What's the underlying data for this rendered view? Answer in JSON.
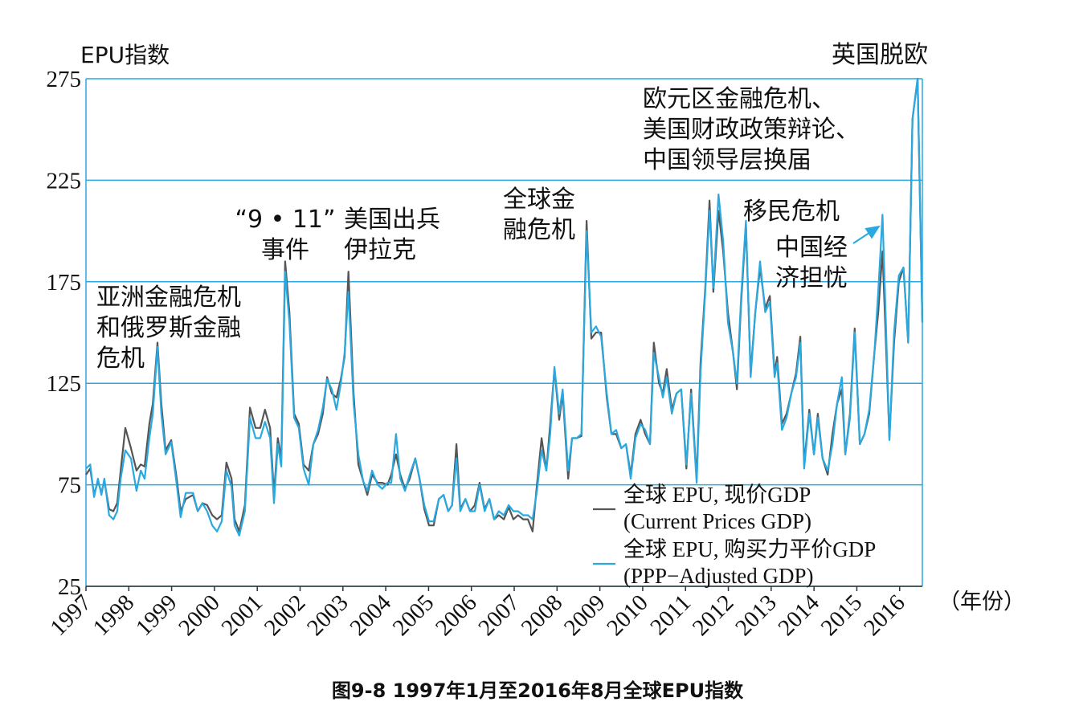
{
  "chart_data": {
    "type": "line",
    "title": "图9-8 1997年1月至2016年8月全球EPU指数",
    "y_label": "EPU指数",
    "x_label": "（年份）",
    "xlim": [
      1997,
      2016.53
    ],
    "xticks": [
      1997,
      1998,
      1999,
      2000,
      2001,
      2002,
      2003,
      2004,
      2005,
      2006,
      2007,
      2008,
      2009,
      2010,
      2011,
      2012,
      2013,
      2014,
      2015,
      2016
    ],
    "ylim": [
      25,
      275
    ],
    "yticks": [
      25,
      75,
      125,
      175,
      225,
      275
    ],
    "grid": true,
    "legend": "lower right",
    "annotations": [
      "亚洲金融危机\n和俄罗斯金融\n危机",
      "“9 • 11”\n事件",
      "美国出兵\n伊拉克",
      "全球金\n融危机",
      "欧元区金融危机、\n美国财政政策辩论、\n中国领导层换届",
      "移民危机",
      "中国经\n济担忧",
      "英国脱欧"
    ],
    "x": [
      1997.0,
      1997.1,
      1997.19,
      1997.28,
      1997.36,
      1997.43,
      1997.54,
      1997.64,
      1997.73,
      1997.81,
      1997.92,
      1998.05,
      1998.18,
      1998.28,
      1998.37,
      1998.48,
      1998.56,
      1998.67,
      1998.76,
      1998.86,
      1998.99,
      1999.12,
      1999.21,
      1999.33,
      1999.5,
      1999.61,
      1999.72,
      1999.83,
      1999.95,
      2000.06,
      2000.17,
      2000.28,
      2000.4,
      2000.47,
      2000.58,
      2000.71,
      2000.83,
      2000.96,
      2001.07,
      2001.18,
      2001.3,
      2001.39,
      2001.48,
      2001.56,
      2001.65,
      2001.75,
      2001.86,
      2001.97,
      2002.08,
      2002.2,
      2002.31,
      2002.42,
      2002.53,
      2002.63,
      2002.74,
      2002.85,
      2002.95,
      2003.04,
      2003.13,
      2003.25,
      2003.36,
      2003.47,
      2003.57,
      2003.68,
      2003.81,
      2003.92,
      2004.04,
      2004.13,
      2004.24,
      2004.34,
      2004.45,
      2004.56,
      2004.69,
      2004.79,
      2004.9,
      2005.01,
      2005.12,
      2005.24,
      2005.35,
      2005.46,
      2005.55,
      2005.65,
      2005.74,
      2005.86,
      2005.97,
      2006.08,
      2006.19,
      2006.31,
      2006.42,
      2006.53,
      2006.64,
      2006.76,
      2006.87,
      2006.98,
      2007.09,
      2007.21,
      2007.32,
      2007.43,
      2007.53,
      2007.64,
      2007.75,
      2007.84,
      2007.94,
      2008.05,
      2008.13,
      2008.26,
      2008.35,
      2008.46,
      2008.57,
      2008.69,
      2008.8,
      2008.91,
      2009.03,
      2009.16,
      2009.27,
      2009.38,
      2009.5,
      2009.61,
      2009.72,
      2009.83,
      2009.95,
      2010.06,
      2010.17,
      2010.26,
      2010.38,
      2010.47,
      2010.56,
      2010.68,
      2010.79,
      2010.9,
      2011.02,
      2011.13,
      2011.26,
      2011.35,
      2011.46,
      2011.56,
      2011.65,
      2011.77,
      2011.88,
      2011.99,
      2012.11,
      2012.2,
      2012.3,
      2012.41,
      2012.52,
      2012.63,
      2012.74,
      2012.86,
      2012.97,
      2013.08,
      2013.14,
      2013.25,
      2013.36,
      2013.47,
      2013.58,
      2013.68,
      2013.77,
      2013.89,
      2014.0,
      2014.09,
      2014.2,
      2014.32,
      2014.43,
      2014.54,
      2014.65,
      2014.73,
      2014.84,
      2014.95,
      2015.07,
      2015.18,
      2015.29,
      2015.41,
      2015.5,
      2015.6,
      2015.67,
      2015.76,
      2015.87,
      2015.98,
      2016.09,
      2016.2,
      2016.3,
      2016.42,
      2016.53
    ],
    "series": [
      {
        "name": "全球 EPU, 现价GDP\n(Current Prices GDP)",
        "color": "#555555",
        "values": [
          80,
          83,
          70,
          77,
          71,
          77,
          63,
          62,
          66,
          82,
          103,
          93,
          82,
          85,
          84,
          105,
          115,
          145,
          115,
          92,
          97,
          78,
          62,
          68,
          70,
          62,
          66,
          65,
          60,
          58,
          60,
          86,
          78,
          58,
          52,
          65,
          113,
          103,
          103,
          112,
          103,
          70,
          98,
          88,
          185,
          160,
          110,
          105,
          85,
          82,
          95,
          100,
          110,
          128,
          120,
          118,
          127,
          138,
          180,
          120,
          85,
          77,
          70,
          80,
          76,
          76,
          75,
          80,
          90,
          80,
          73,
          78,
          88,
          78,
          63,
          55,
          55,
          68,
          70,
          62,
          65,
          95,
          63,
          68,
          62,
          65,
          76,
          63,
          68,
          58,
          60,
          58,
          64,
          58,
          60,
          58,
          58,
          52,
          75,
          98,
          82,
          105,
          132,
          107,
          120,
          78,
          98,
          98,
          99,
          205,
          147,
          150,
          150,
          118,
          100,
          100,
          93,
          95,
          80,
          100,
          107,
          100,
          95,
          145,
          125,
          120,
          132,
          112,
          120,
          122,
          83,
          122,
          78,
          135,
          172,
          215,
          170,
          210,
          190,
          160,
          140,
          122,
          165,
          203,
          130,
          160,
          182,
          162,
          168,
          130,
          138,
          105,
          110,
          120,
          130,
          148,
          85,
          112,
          90,
          110,
          88,
          80,
          100,
          115,
          122,
          90,
          110,
          152,
          95,
          100,
          110,
          140,
          160,
          190,
          150,
          98,
          145,
          175,
          182,
          145,
          255,
          275,
          155
        ]
      },
      {
        "name": "全球 EPU, 购买力平价GDP\n(PPP−Adjusted GDP)",
        "color": "#29a9e0",
        "values": [
          83,
          85,
          69,
          78,
          70,
          78,
          60,
          58,
          62,
          78,
          92,
          88,
          72,
          82,
          78,
          98,
          110,
          143,
          110,
          90,
          96,
          75,
          59,
          71,
          71,
          62,
          66,
          62,
          55,
          52,
          57,
          82,
          74,
          55,
          50,
          62,
          108,
          98,
          98,
          106,
          98,
          66,
          95,
          84,
          180,
          155,
          108,
          103,
          83,
          75,
          95,
          102,
          113,
          127,
          122,
          112,
          125,
          140,
          170,
          115,
          90,
          77,
          72,
          82,
          75,
          73,
          76,
          76,
          100,
          78,
          72,
          80,
          88,
          78,
          65,
          57,
          57,
          68,
          70,
          62,
          65,
          88,
          62,
          68,
          62,
          62,
          75,
          62,
          68,
          58,
          62,
          60,
          65,
          62,
          62,
          60,
          60,
          58,
          72,
          92,
          82,
          100,
          133,
          110,
          122,
          82,
          98,
          98,
          100,
          200,
          150,
          153,
          148,
          120,
          100,
          102,
          93,
          95,
          78,
          98,
          105,
          102,
          95,
          140,
          128,
          118,
          128,
          110,
          120,
          122,
          85,
          120,
          76,
          130,
          170,
          210,
          172,
          218,
          195,
          155,
          140,
          125,
          168,
          205,
          128,
          160,
          185,
          160,
          165,
          128,
          135,
          102,
          108,
          120,
          128,
          145,
          83,
          110,
          90,
          108,
          88,
          82,
          95,
          115,
          128,
          90,
          108,
          150,
          95,
          100,
          112,
          140,
          170,
          208,
          160,
          97,
          150,
          178,
          182,
          145,
          255,
          275,
          155
        ]
      }
    ]
  }
}
